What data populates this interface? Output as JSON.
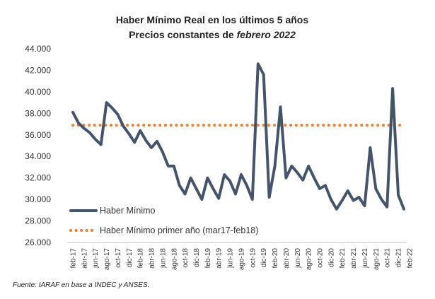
{
  "chart_data": {
    "type": "line",
    "title_line1": "Haber Mínimo Real en los últimos 5 años",
    "title_line2_prefix": "Precios constantes de ",
    "title_line2_emph": "febrero 2022",
    "ylim": [
      26000,
      44000
    ],
    "y_ticks": [
      {
        "value": 26000,
        "label": "26.000"
      },
      {
        "value": 28000,
        "label": "28.000"
      },
      {
        "value": 30000,
        "label": "30.000"
      },
      {
        "value": 32000,
        "label": "32.000"
      },
      {
        "value": 34000,
        "label": "34.000"
      },
      {
        "value": 36000,
        "label": "36.000"
      },
      {
        "value": 38000,
        "label": "38.000"
      },
      {
        "value": 40000,
        "label": "40.000"
      },
      {
        "value": 42000,
        "label": "42.000"
      },
      {
        "value": 44000,
        "label": "44.000"
      }
    ],
    "x_tick_labels": [
      "feb-17",
      "abr-17",
      "jun-17",
      "ago-17",
      "oct-17",
      "dic-17",
      "feb-18",
      "abr-18",
      "jun-18",
      "ago-18",
      "oct-18",
      "dic-18",
      "feb-19",
      "abr-19",
      "jun-19",
      "ago-19",
      "oct-19",
      "dic-19",
      "feb-20",
      "abr-20",
      "jun-20",
      "ago-20",
      "oct-20",
      "dic-20",
      "feb-21",
      "abr-21",
      "jun-21",
      "ago-21",
      "oct-21",
      "dic-21",
      "feb-22"
    ],
    "series": [
      {
        "name": "Haber Mínimo",
        "style": "solid",
        "color": "#44546a",
        "values": [
          38100,
          37100,
          36600,
          36200,
          35600,
          35100,
          39000,
          38500,
          37900,
          36800,
          36100,
          35300,
          36400,
          35500,
          34800,
          35400,
          34400,
          33100,
          33100,
          31300,
          30500,
          32000,
          31000,
          30000,
          32000,
          31000,
          30100,
          32300,
          31700,
          30500,
          32300,
          31300,
          30000,
          42600,
          41600,
          30200,
          33100,
          38600,
          32000,
          33100,
          32500,
          31800,
          33100,
          32000,
          31000,
          31300,
          30000,
          29100,
          29900,
          30800,
          29900,
          30200,
          29400,
          34800,
          31000,
          30000,
          29300,
          40300,
          30400,
          29100
        ]
      },
      {
        "name": "Haber Mínimo primer año (mar17-feb18)",
        "style": "dotted",
        "color": "#ed7d31",
        "constant": 36900
      }
    ],
    "source": "Fuente: IARAF en base a INDEC y ANSES."
  }
}
